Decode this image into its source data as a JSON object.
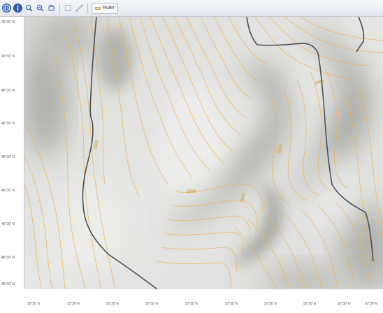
{
  "toolbar": {
    "buttons": [
      {
        "icon": "globe-icon",
        "active": true
      },
      {
        "icon": "info-icon",
        "active": true
      },
      {
        "icon": "zoom-in-icon",
        "active": false
      },
      {
        "icon": "zoom-out-icon",
        "active": false
      },
      {
        "icon": "pan-icon",
        "active": false
      },
      {
        "icon": "select-icon",
        "active": false
      },
      {
        "icon": "measure-icon",
        "active": false
      }
    ],
    "text_button_label": "Ruler"
  },
  "axes": {
    "latitudes": [
      "46°30' N",
      "46°30' N",
      "46°30' N",
      "46°30' N",
      "46°30' N",
      "46°30' N",
      "46°30' N",
      "46°30' N",
      "46°30' N"
    ],
    "longitudes": [
      "10°30' E",
      "10°30' E",
      "10°30' E",
      "10°30' E",
      "10°30' E",
      "10°30' E",
      "10°30' E",
      "10°30' E",
      "10°30' E",
      "10°30' E"
    ]
  },
  "map": {
    "colors": {
      "terrain_light": "#e4e4e2",
      "terrain_shadow": "#8f8f8a",
      "contour": "#f0b050",
      "contour_label": "#e0a040",
      "boundary": "#4a4e56"
    },
    "contour_labels": [
      "2400",
      "2300",
      "2200",
      "2500",
      "2600"
    ]
  }
}
